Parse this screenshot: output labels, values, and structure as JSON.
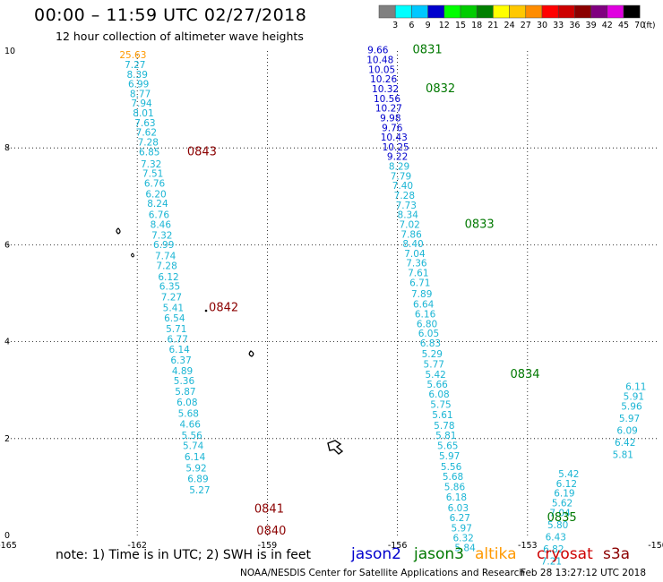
{
  "header": {
    "title": "00:00 – 11:59 UTC 02/27/2018",
    "subtitle": "12 hour collection of altimeter wave heights"
  },
  "legend": {
    "bins": [
      {
        "label": "3",
        "color": "#808080"
      },
      {
        "label": "6",
        "color": "#00ffff"
      },
      {
        "label": "9",
        "color": "#00c8ff"
      },
      {
        "label": "12",
        "color": "#0000cd"
      },
      {
        "label": "15",
        "color": "#00ff00"
      },
      {
        "label": "18",
        "color": "#00cd00"
      },
      {
        "label": "21",
        "color": "#008000"
      },
      {
        "label": "24",
        "color": "#ffff00"
      },
      {
        "label": "27",
        "color": "#ffc800"
      },
      {
        "label": "30",
        "color": "#ff8c00"
      },
      {
        "label": "33",
        "color": "#ff0000"
      },
      {
        "label": "36",
        "color": "#cd0000"
      },
      {
        "label": "39",
        "color": "#8b0000"
      },
      {
        "label": "42",
        "color": "#800080"
      },
      {
        "label": "45",
        "color": "#e000e0"
      },
      {
        "label": "70",
        "color": "#000000"
      }
    ],
    "unit": "(ft)"
  },
  "axes": {
    "lon_labels": [
      "-165",
      "-162",
      "-159",
      "-156",
      "-153",
      "-150"
    ],
    "lat_labels": [
      "0",
      "2",
      "4",
      "6",
      "8",
      "10"
    ]
  },
  "colors": {
    "aqua": "#1bb5d4",
    "blue": "#0000cd",
    "green": "#007800",
    "darkred": "#8b0000",
    "orange": "#ff9900",
    "gray": "#777777"
  },
  "tracks": [
    {
      "name": "track-1",
      "points": [
        {
          "lon": -162.1,
          "lat": 9.85,
          "v": "25.63",
          "c": "#ff9900"
        },
        {
          "lon": -162.05,
          "lat": 9.65,
          "v": "7.27",
          "c": "#1bb5d4"
        },
        {
          "lon": -162.0,
          "lat": 9.45,
          "v": "8.39",
          "c": "#1bb5d4"
        },
        {
          "lon": -161.97,
          "lat": 9.25,
          "v": "6.99",
          "c": "#1bb5d4"
        },
        {
          "lon": -161.93,
          "lat": 9.05,
          "v": "8.77",
          "c": "#1bb5d4"
        },
        {
          "lon": -161.9,
          "lat": 8.85,
          "v": "7.94",
          "c": "#1bb5d4"
        },
        {
          "lon": -161.86,
          "lat": 8.65,
          "v": "8.01",
          "c": "#1bb5d4"
        },
        {
          "lon": -161.82,
          "lat": 8.45,
          "v": "7.63",
          "c": "#1bb5d4"
        },
        {
          "lon": -161.79,
          "lat": 8.25,
          "v": "7.62",
          "c": "#1bb5d4"
        },
        {
          "lon": -161.75,
          "lat": 8.05,
          "v": "7.28",
          "c": "#1bb5d4"
        },
        {
          "lon": -161.72,
          "lat": 7.85,
          "v": "6.85",
          "c": "#1bb5d4"
        },
        {
          "lon": -161.68,
          "lat": 7.6,
          "v": "7.32",
          "c": "#1bb5d4"
        },
        {
          "lon": -161.64,
          "lat": 7.4,
          "v": "7.51",
          "c": "#1bb5d4"
        },
        {
          "lon": -161.6,
          "lat": 7.2,
          "v": "6.76",
          "c": "#1bb5d4"
        },
        {
          "lon": -161.57,
          "lat": 6.98,
          "v": "6.20",
          "c": "#1bb5d4"
        },
        {
          "lon": -161.53,
          "lat": 6.78,
          "v": "8.24",
          "c": "#1bb5d4"
        },
        {
          "lon": -161.5,
          "lat": 6.55,
          "v": "6.76",
          "c": "#1bb5d4"
        },
        {
          "lon": -161.46,
          "lat": 6.35,
          "v": "8.46",
          "c": "#1bb5d4"
        },
        {
          "lon": -161.43,
          "lat": 6.13,
          "v": "7.32",
          "c": "#1bb5d4"
        },
        {
          "lon": -161.39,
          "lat": 5.93,
          "v": "6.99",
          "c": "#1bb5d4"
        },
        {
          "lon": -161.35,
          "lat": 5.7,
          "v": "7.74",
          "c": "#1bb5d4"
        },
        {
          "lon": -161.32,
          "lat": 5.5,
          "v": "7.28",
          "c": "#1bb5d4"
        },
        {
          "lon": -161.28,
          "lat": 5.27,
          "v": "6.12",
          "c": "#1bb5d4"
        },
        {
          "lon": -161.25,
          "lat": 5.07,
          "v": "6.35",
          "c": "#1bb5d4"
        },
        {
          "lon": -161.21,
          "lat": 4.85,
          "v": "7.27",
          "c": "#1bb5d4"
        },
        {
          "lon": -161.17,
          "lat": 4.63,
          "v": "5.41",
          "c": "#1bb5d4"
        },
        {
          "lon": -161.14,
          "lat": 4.42,
          "v": "6.54",
          "c": "#1bb5d4"
        },
        {
          "lon": -161.1,
          "lat": 4.2,
          "v": "5.71",
          "c": "#1bb5d4"
        },
        {
          "lon": -161.07,
          "lat": 3.98,
          "v": "6.77",
          "c": "#1bb5d4"
        },
        {
          "lon": -161.03,
          "lat": 3.77,
          "v": "6.14",
          "c": "#1bb5d4"
        },
        {
          "lon": -160.99,
          "lat": 3.55,
          "v": "6.37",
          "c": "#1bb5d4"
        },
        {
          "lon": -160.96,
          "lat": 3.33,
          "v": "4.89",
          "c": "#1bb5d4"
        },
        {
          "lon": -160.92,
          "lat": 3.12,
          "v": "5.36",
          "c": "#1bb5d4"
        },
        {
          "lon": -160.89,
          "lat": 2.9,
          "v": "5.87",
          "c": "#1bb5d4"
        },
        {
          "lon": -160.85,
          "lat": 2.68,
          "v": "6.08",
          "c": "#1bb5d4"
        },
        {
          "lon": -160.82,
          "lat": 2.45,
          "v": "5.68",
          "c": "#1bb5d4"
        },
        {
          "lon": -160.78,
          "lat": 2.23,
          "v": "4.66",
          "c": "#1bb5d4"
        },
        {
          "lon": -160.74,
          "lat": 2.0,
          "v": "5.56",
          "c": "#1bb5d4"
        },
        {
          "lon": -160.71,
          "lat": 1.78,
          "v": "5.74",
          "c": "#1bb5d4"
        },
        {
          "lon": -160.67,
          "lat": 1.55,
          "v": "6.14",
          "c": "#1bb5d4"
        },
        {
          "lon": -160.64,
          "lat": 1.32,
          "v": "5.92",
          "c": "#1bb5d4"
        },
        {
          "lon": -160.6,
          "lat": 1.1,
          "v": "6.89",
          "c": "#1bb5d4"
        },
        {
          "lon": -160.56,
          "lat": 0.87,
          "v": "5.27",
          "c": "#1bb5d4"
        }
      ]
    },
    {
      "name": "track-2",
      "points": [
        {
          "lon": -156.45,
          "lat": 9.95,
          "v": "9.66",
          "c": "#0000cd"
        },
        {
          "lon": -156.4,
          "lat": 9.75,
          "v": "10.48",
          "c": "#0000cd"
        },
        {
          "lon": -156.36,
          "lat": 9.55,
          "v": "10.05",
          "c": "#0000cd"
        },
        {
          "lon": -156.32,
          "lat": 9.35,
          "v": "10.26",
          "c": "#0000cd"
        },
        {
          "lon": -156.28,
          "lat": 9.15,
          "v": "10.32",
          "c": "#0000cd"
        },
        {
          "lon": -156.24,
          "lat": 8.95,
          "v": "10.56",
          "c": "#0000cd"
        },
        {
          "lon": -156.2,
          "lat": 8.75,
          "v": "10.27",
          "c": "#0000cd"
        },
        {
          "lon": -156.16,
          "lat": 8.55,
          "v": "9.98",
          "c": "#0000cd"
        },
        {
          "lon": -156.12,
          "lat": 8.35,
          "v": "9.76",
          "c": "#0000cd"
        },
        {
          "lon": -156.08,
          "lat": 8.15,
          "v": "10.43",
          "c": "#0000cd"
        },
        {
          "lon": -156.04,
          "lat": 7.95,
          "v": "10.25",
          "c": "#0000cd"
        },
        {
          "lon": -156.0,
          "lat": 7.75,
          "v": "9.22",
          "c": "#0000cd"
        },
        {
          "lon": -155.96,
          "lat": 7.55,
          "v": "8.29",
          "c": "#1bb5d4"
        },
        {
          "lon": -155.92,
          "lat": 7.35,
          "v": "7.79",
          "c": "#1bb5d4"
        },
        {
          "lon": -155.88,
          "lat": 7.15,
          "v": "7.40",
          "c": "#1bb5d4"
        },
        {
          "lon": -155.84,
          "lat": 6.95,
          "v": "7.28",
          "c": "#1bb5d4"
        },
        {
          "lon": -155.8,
          "lat": 6.75,
          "v": "7.73",
          "c": "#1bb5d4"
        },
        {
          "lon": -155.76,
          "lat": 6.55,
          "v": "8.34",
          "c": "#1bb5d4"
        },
        {
          "lon": -155.72,
          "lat": 6.35,
          "v": "7.02",
          "c": "#1bb5d4"
        },
        {
          "lon": -155.68,
          "lat": 6.15,
          "v": "7.86",
          "c": "#1bb5d4"
        },
        {
          "lon": -155.64,
          "lat": 5.95,
          "v": "8.40",
          "c": "#1bb5d4"
        },
        {
          "lon": -155.6,
          "lat": 5.75,
          "v": "7.04",
          "c": "#1bb5d4"
        },
        {
          "lon": -155.56,
          "lat": 5.55,
          "v": "7.36",
          "c": "#1bb5d4"
        },
        {
          "lon": -155.52,
          "lat": 5.35,
          "v": "7.61",
          "c": "#1bb5d4"
        },
        {
          "lon": -155.48,
          "lat": 5.15,
          "v": "6.71",
          "c": "#1bb5d4"
        },
        {
          "lon": -155.44,
          "lat": 4.92,
          "v": "7.89",
          "c": "#1bb5d4"
        },
        {
          "lon": -155.4,
          "lat": 4.7,
          "v": "6.64",
          "c": "#1bb5d4"
        },
        {
          "lon": -155.36,
          "lat": 4.5,
          "v": "6.16",
          "c": "#1bb5d4"
        },
        {
          "lon": -155.32,
          "lat": 4.3,
          "v": "6.80",
          "c": "#1bb5d4"
        },
        {
          "lon": -155.28,
          "lat": 4.1,
          "v": "6.05",
          "c": "#1bb5d4"
        },
        {
          "lon": -155.24,
          "lat": 3.9,
          "v": "6.83",
          "c": "#1bb5d4"
        },
        {
          "lon": -155.2,
          "lat": 3.68,
          "v": "5.29",
          "c": "#1bb5d4"
        },
        {
          "lon": -155.16,
          "lat": 3.47,
          "v": "5.77",
          "c": "#1bb5d4"
        },
        {
          "lon": -155.12,
          "lat": 3.25,
          "v": "5.42",
          "c": "#1bb5d4"
        },
        {
          "lon": -155.08,
          "lat": 3.05,
          "v": "5.66",
          "c": "#1bb5d4"
        },
        {
          "lon": -155.04,
          "lat": 2.85,
          "v": "6.08",
          "c": "#1bb5d4"
        },
        {
          "lon": -155.0,
          "lat": 2.63,
          "v": "5.75",
          "c": "#1bb5d4"
        },
        {
          "lon": -154.96,
          "lat": 2.42,
          "v": "5.61",
          "c": "#1bb5d4"
        },
        {
          "lon": -154.92,
          "lat": 2.2,
          "v": "5.78",
          "c": "#1bb5d4"
        },
        {
          "lon": -154.88,
          "lat": 2.0,
          "v": "5.81",
          "c": "#1bb5d4"
        },
        {
          "lon": -154.84,
          "lat": 1.78,
          "v": "5.65",
          "c": "#1bb5d4"
        },
        {
          "lon": -154.8,
          "lat": 1.57,
          "v": "5.97",
          "c": "#1bb5d4"
        },
        {
          "lon": -154.76,
          "lat": 1.35,
          "v": "5.56",
          "c": "#1bb5d4"
        },
        {
          "lon": -154.72,
          "lat": 1.15,
          "v": "5.68",
          "c": "#1bb5d4"
        },
        {
          "lon": -154.68,
          "lat": 0.93,
          "v": "5.86",
          "c": "#1bb5d4"
        },
        {
          "lon": -154.64,
          "lat": 0.72,
          "v": "6.18",
          "c": "#1bb5d4"
        },
        {
          "lon": -154.6,
          "lat": 0.5,
          "v": "6.03",
          "c": "#1bb5d4"
        },
        {
          "lon": -154.56,
          "lat": 0.3,
          "v": "6.27",
          "c": "#1bb5d4"
        },
        {
          "lon": -154.52,
          "lat": 0.08,
          "v": "5.97",
          "c": "#1bb5d4"
        },
        {
          "lon": -154.48,
          "lat": -0.12,
          "v": "6.32",
          "c": "#1bb5d4"
        },
        {
          "lon": -154.44,
          "lat": -0.32,
          "v": "5.84",
          "c": "#1bb5d4"
        }
      ]
    },
    {
      "name": "track-3",
      "points": [
        {
          "lon": -152.05,
          "lat": 1.2,
          "v": "5.42",
          "c": "#1bb5d4"
        },
        {
          "lon": -152.1,
          "lat": 1.0,
          "v": "6.12",
          "c": "#1bb5d4"
        },
        {
          "lon": -152.15,
          "lat": 0.8,
          "v": "6.19",
          "c": "#1bb5d4"
        },
        {
          "lon": -152.2,
          "lat": 0.6,
          "v": "5.62",
          "c": "#1bb5d4"
        },
        {
          "lon": -152.25,
          "lat": 0.4,
          "v": "7.04",
          "c": "#1bb5d4"
        },
        {
          "lon": -152.3,
          "lat": 0.15,
          "v": "5.80",
          "c": "#1bb5d4"
        },
        {
          "lon": -152.35,
          "lat": -0.1,
          "v": "6.43",
          "c": "#1bb5d4"
        },
        {
          "lon": -152.4,
          "lat": -0.35,
          "v": "6.82",
          "c": "#1bb5d4"
        },
        {
          "lon": -152.45,
          "lat": -0.6,
          "v": "7.21",
          "c": "#1bb5d4"
        }
      ]
    },
    {
      "name": "track-4",
      "points": [
        {
          "lon": -150.5,
          "lat": 3.0,
          "v": "6.11",
          "c": "#1bb5d4"
        },
        {
          "lon": -150.55,
          "lat": 2.8,
          "v": "5.91",
          "c": "#1bb5d4"
        },
        {
          "lon": -150.6,
          "lat": 2.6,
          "v": "5.96",
          "c": "#1bb5d4"
        },
        {
          "lon": -150.65,
          "lat": 2.35,
          "v": "5.97",
          "c": "#1bb5d4"
        },
        {
          "lon": -150.7,
          "lat": 2.1,
          "v": "6.09",
          "c": "#1bb5d4"
        },
        {
          "lon": -150.75,
          "lat": 1.85,
          "v": "6.42",
          "c": "#1bb5d4"
        },
        {
          "lon": -150.8,
          "lat": 1.6,
          "v": "5.81",
          "c": "#1bb5d4"
        }
      ]
    }
  ],
  "pass_labels": [
    {
      "text": "0831",
      "lon": -155.65,
      "lat": 9.95,
      "c": "#007800"
    },
    {
      "text": "0832",
      "lon": -155.35,
      "lat": 9.15,
      "c": "#007800"
    },
    {
      "text": "0833",
      "lon": -154.45,
      "lat": 6.35,
      "c": "#007800"
    },
    {
      "text": "0834",
      "lon": -153.4,
      "lat": 3.25,
      "c": "#007800"
    },
    {
      "text": "0835",
      "lon": -152.55,
      "lat": 0.3,
      "c": "#007800"
    },
    {
      "text": "0843",
      "lon": -160.85,
      "lat": 7.85,
      "c": "#8b0000"
    },
    {
      "text": "0842",
      "lon": -160.35,
      "lat": 4.63,
      "c": "#8b0000"
    },
    {
      "text": "0841",
      "lon": -159.3,
      "lat": 0.47,
      "c": "#8b0000"
    },
    {
      "text": "0840",
      "lon": -159.25,
      "lat": 0.02,
      "c": "#8b0000"
    }
  ],
  "footer": {
    "note": "note: 1) Time is in UTC; 2) SWH is in feet",
    "missions": [
      {
        "name": "jason2",
        "color": "#0000cd"
      },
      {
        "name": "jason3",
        "color": "#007800"
      },
      {
        "name": "altika",
        "color": "#ff9900"
      },
      {
        "name": "cryosat",
        "color": "#cd0000"
      },
      {
        "name": "s3a",
        "color": "#8b0000"
      }
    ],
    "credit": "NOAA/NESDIS Center for Satellite Applications and Research",
    "timestamp": "Feb 28 13:27:12 UTC 2018"
  }
}
